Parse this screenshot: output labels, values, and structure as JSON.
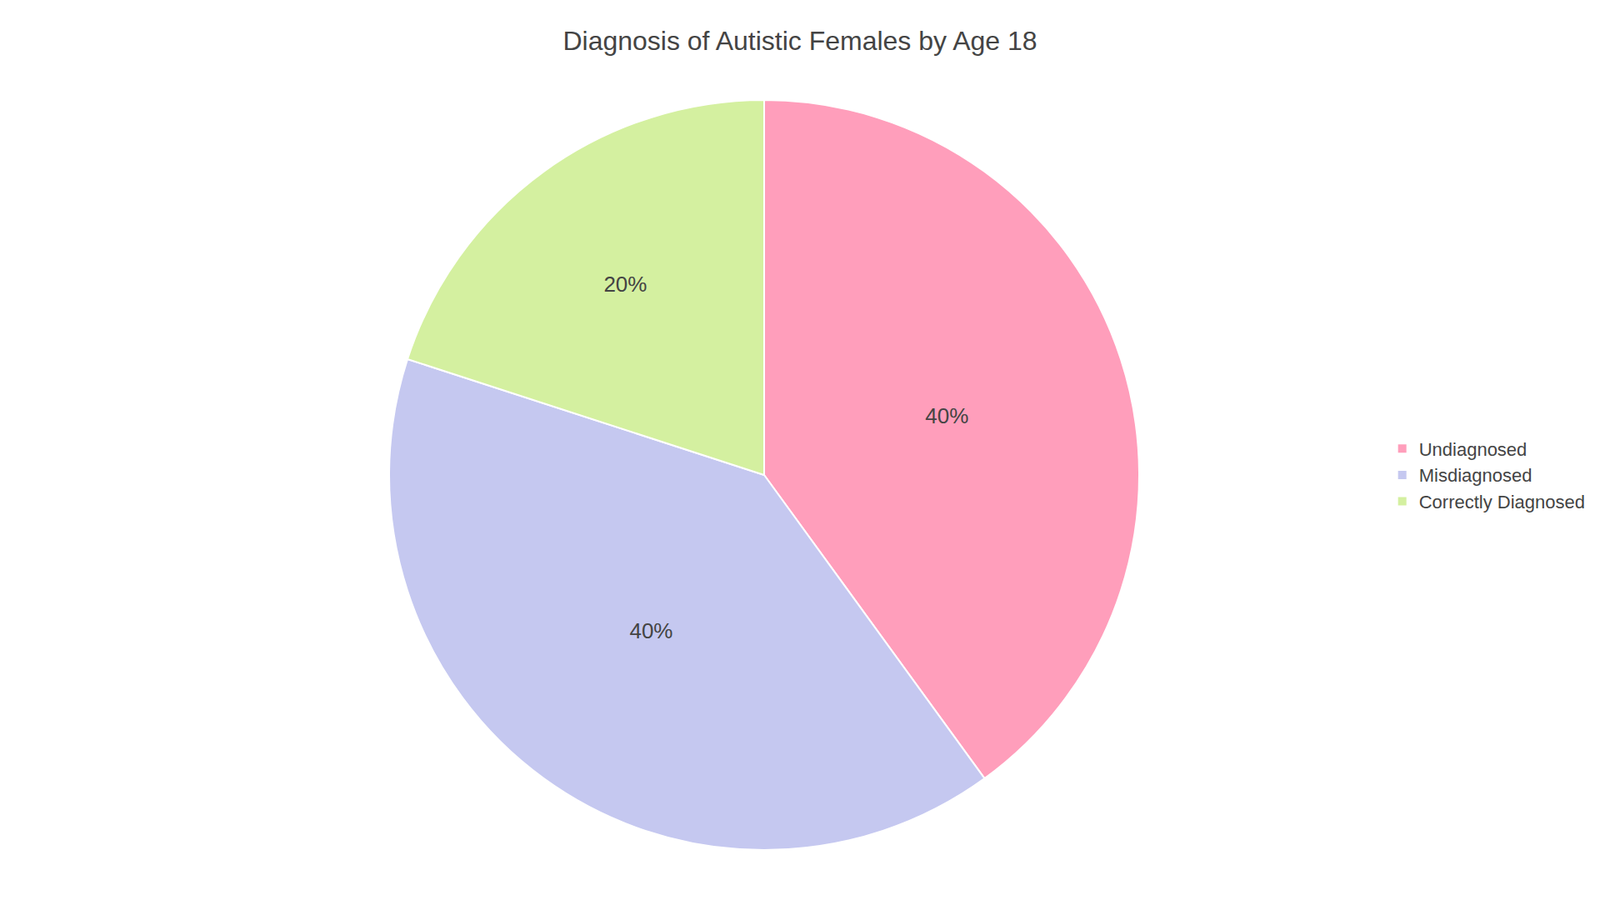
{
  "chart_data": {
    "type": "pie",
    "title": "Diagnosis of Autistic Females by Age 18",
    "categories": [
      "Undiagnosed",
      "Misdiagnosed",
      "Correctly Diagnosed"
    ],
    "values": [
      40,
      40,
      20
    ],
    "value_labels": [
      "40%",
      "40%",
      "20%"
    ],
    "colors": [
      "#FF9EBB",
      "#C5C8F0",
      "#D4F0A0"
    ],
    "data_labels": true,
    "legend": "right"
  }
}
